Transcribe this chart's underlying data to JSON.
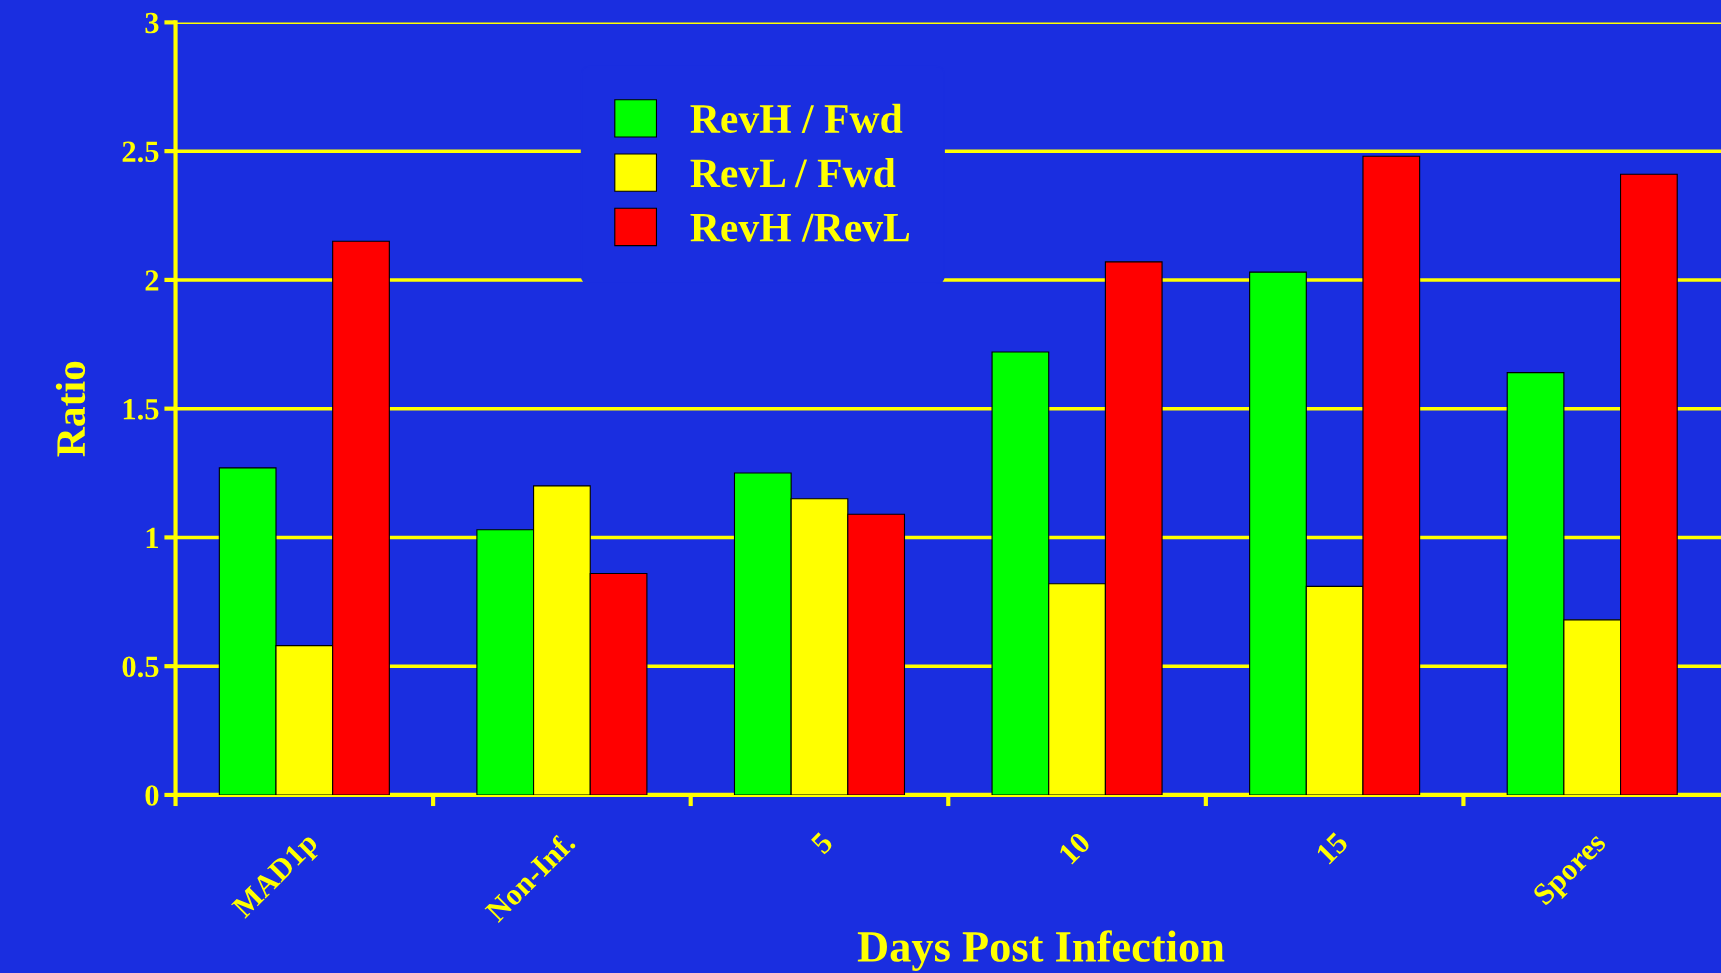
{
  "chart_data": {
    "type": "bar",
    "xlabel": "Days Post Infection",
    "ylabel": "Ratio",
    "categories": [
      "MAD1p",
      "Non-Inf.",
      "5",
      "10",
      "15",
      "Spores"
    ],
    "series": [
      {
        "name": "RevH / Fwd",
        "color": "#00ff00",
        "values": [
          1.27,
          1.03,
          1.25,
          1.72,
          2.03,
          1.64
        ]
      },
      {
        "name": "RevL / Fwd",
        "color": "#ffff00",
        "values": [
          0.58,
          1.2,
          1.15,
          0.82,
          0.81,
          0.68
        ]
      },
      {
        "name": "RevH /RevL",
        "color": "#ff0000",
        "values": [
          2.15,
          0.86,
          1.09,
          2.07,
          2.48,
          2.41
        ]
      }
    ],
    "ylim": [
      0,
      3
    ],
    "yticks": [
      0,
      0.5,
      1,
      1.5,
      2,
      2.5,
      3
    ],
    "grid": "y",
    "legend": "top"
  }
}
